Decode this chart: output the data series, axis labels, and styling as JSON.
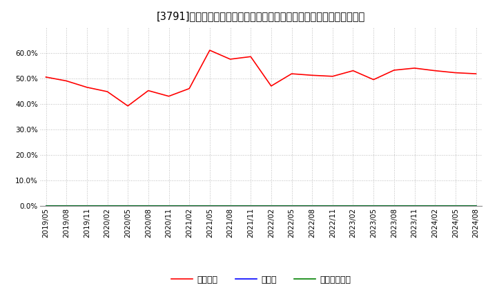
{
  "title": "[3791]　自己資本、のれん、繰延税金資産の総資産に対する比率の推移",
  "x_labels": [
    "2019/05",
    "2019/08",
    "2019/11",
    "2020/02",
    "2020/05",
    "2020/08",
    "2020/11",
    "2021/02",
    "2021/05",
    "2021/08",
    "2021/11",
    "2022/02",
    "2022/05",
    "2022/08",
    "2022/11",
    "2023/02",
    "2023/05",
    "2023/08",
    "2023/11",
    "2024/02",
    "2024/05",
    "2024/08"
  ],
  "equity_ratio": [
    50.5,
    49.0,
    46.5,
    44.8,
    39.2,
    45.2,
    43.0,
    46.0,
    61.0,
    57.5,
    58.5,
    47.0,
    51.8,
    51.2,
    50.8,
    53.0,
    49.5,
    53.2,
    54.0,
    53.0,
    52.2,
    51.8
  ],
  "noren_ratio": [
    0,
    0,
    0,
    0,
    0,
    0,
    0,
    0,
    0,
    0,
    0,
    0,
    0,
    0,
    0,
    0,
    0,
    0,
    0,
    0,
    0,
    0
  ],
  "deferred_ratio": [
    0,
    0,
    0,
    0,
    0,
    0,
    0,
    0,
    0,
    0,
    0,
    0,
    0,
    0,
    0,
    0,
    0,
    0,
    0,
    0,
    0,
    0
  ],
  "equity_color": "#ff0000",
  "noren_color": "#0000ff",
  "deferred_color": "#008000",
  "ylim": [
    0,
    70
  ],
  "yticks": [
    0.0,
    10.0,
    20.0,
    30.0,
    40.0,
    50.0,
    60.0
  ],
  "background_color": "#ffffff",
  "plot_bg_color": "#ffffff",
  "grid_color": "#bbbbbb",
  "legend_labels": [
    "自己資本",
    "のれん",
    "繰延税金資産"
  ],
  "title_fontsize": 10.5,
  "axis_fontsize": 7.5,
  "legend_fontsize": 9
}
